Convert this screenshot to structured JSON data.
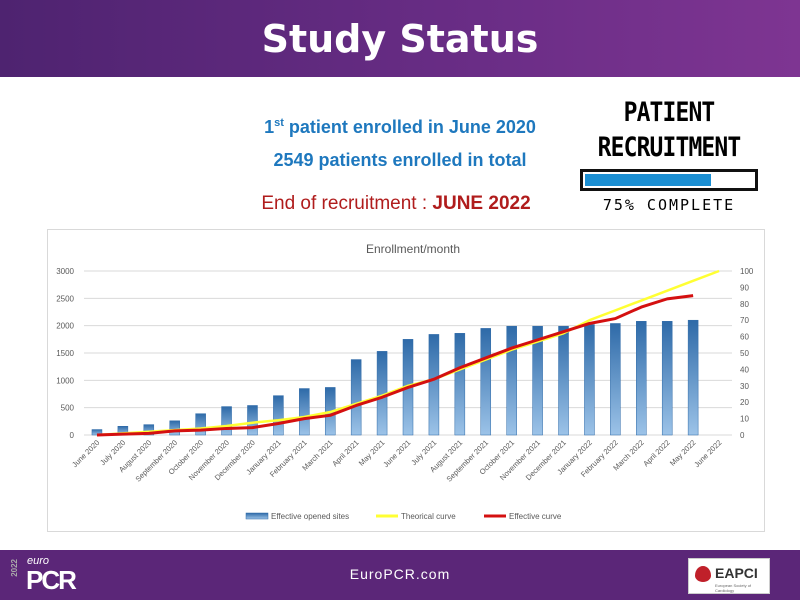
{
  "header": {
    "title": "Study Status"
  },
  "info": {
    "first_patient_ord": "1",
    "first_patient_sup": "st",
    "first_patient_rest": " patient enrolled in June 2020",
    "total": "2549 patients enrolled in total",
    "end_label": "End of recruitment : ",
    "end_value": "JUNE 2022"
  },
  "badge": {
    "line1": "PATIENT",
    "line2": "RECRUITMENT",
    "progress_percent": 75,
    "caption": "75% COMPLETE",
    "color": "#1b8fd3"
  },
  "chart_data": {
    "type": "bar",
    "title": "Enrollment/month",
    "categories": [
      "June 2020",
      "July 2020",
      "August 2020",
      "September 2020",
      "October 2020",
      "November 2020",
      "December 2020",
      "January 2021",
      "February 2021",
      "March 2021",
      "April 2021",
      "May 2021",
      "June 2021",
      "July 2021",
      "August 2021",
      "September 2021",
      "October 2021",
      "November 2021",
      "December 2021",
      "January 2022",
      "February 2022",
      "March 2022",
      "April 2022",
      "May 2022",
      "June 2022"
    ],
    "ylim": [
      0,
      3000
    ],
    "yticks": [
      0,
      500,
      1000,
      1500,
      2000,
      2500,
      3000
    ],
    "y2lim": [
      0,
      100
    ],
    "y2ticks": [
      0,
      10,
      20,
      30,
      40,
      50,
      60,
      70,
      80,
      90,
      100
    ],
    "grid": true,
    "legend": "bottom",
    "series": [
      {
        "name": "Effective opened sites",
        "type": "bar",
        "axis": "left",
        "color": "#2e75b6",
        "values": [
          100,
          160,
          190,
          260,
          390,
          520,
          540,
          720,
          850,
          870,
          1380,
          1530,
          1750,
          1840,
          1860,
          1950,
          1990,
          1990,
          1990,
          2020,
          2040,
          2080,
          2080,
          2100,
          null
        ]
      },
      {
        "name": "Theorical curve",
        "type": "line",
        "axis": "right",
        "color": "#ffff33",
        "values": [
          0,
          1,
          2,
          3,
          4,
          5.5,
          7.5,
          9,
          11,
          14,
          19,
          24,
          30,
          34,
          40,
          46,
          52,
          57,
          62,
          70,
          76,
          82,
          88,
          94,
          100
        ]
      },
      {
        "name": "Effective curve",
        "type": "line",
        "axis": "right",
        "color": "#d41010",
        "values": [
          0,
          0.5,
          1,
          2.5,
          3,
          4,
          4.5,
          7,
          10,
          12,
          18,
          23,
          29,
          34,
          41,
          47,
          53,
          58,
          63,
          68,
          71,
          78,
          83,
          85,
          null
        ]
      }
    ]
  },
  "footer": {
    "url": "EuroPCR.com",
    "logo_year": "2022",
    "logo_euro": "euro",
    "logo_pcr": "PCR",
    "partner": "EAPCI",
    "partner_sub": "European Society of Cardiology"
  }
}
